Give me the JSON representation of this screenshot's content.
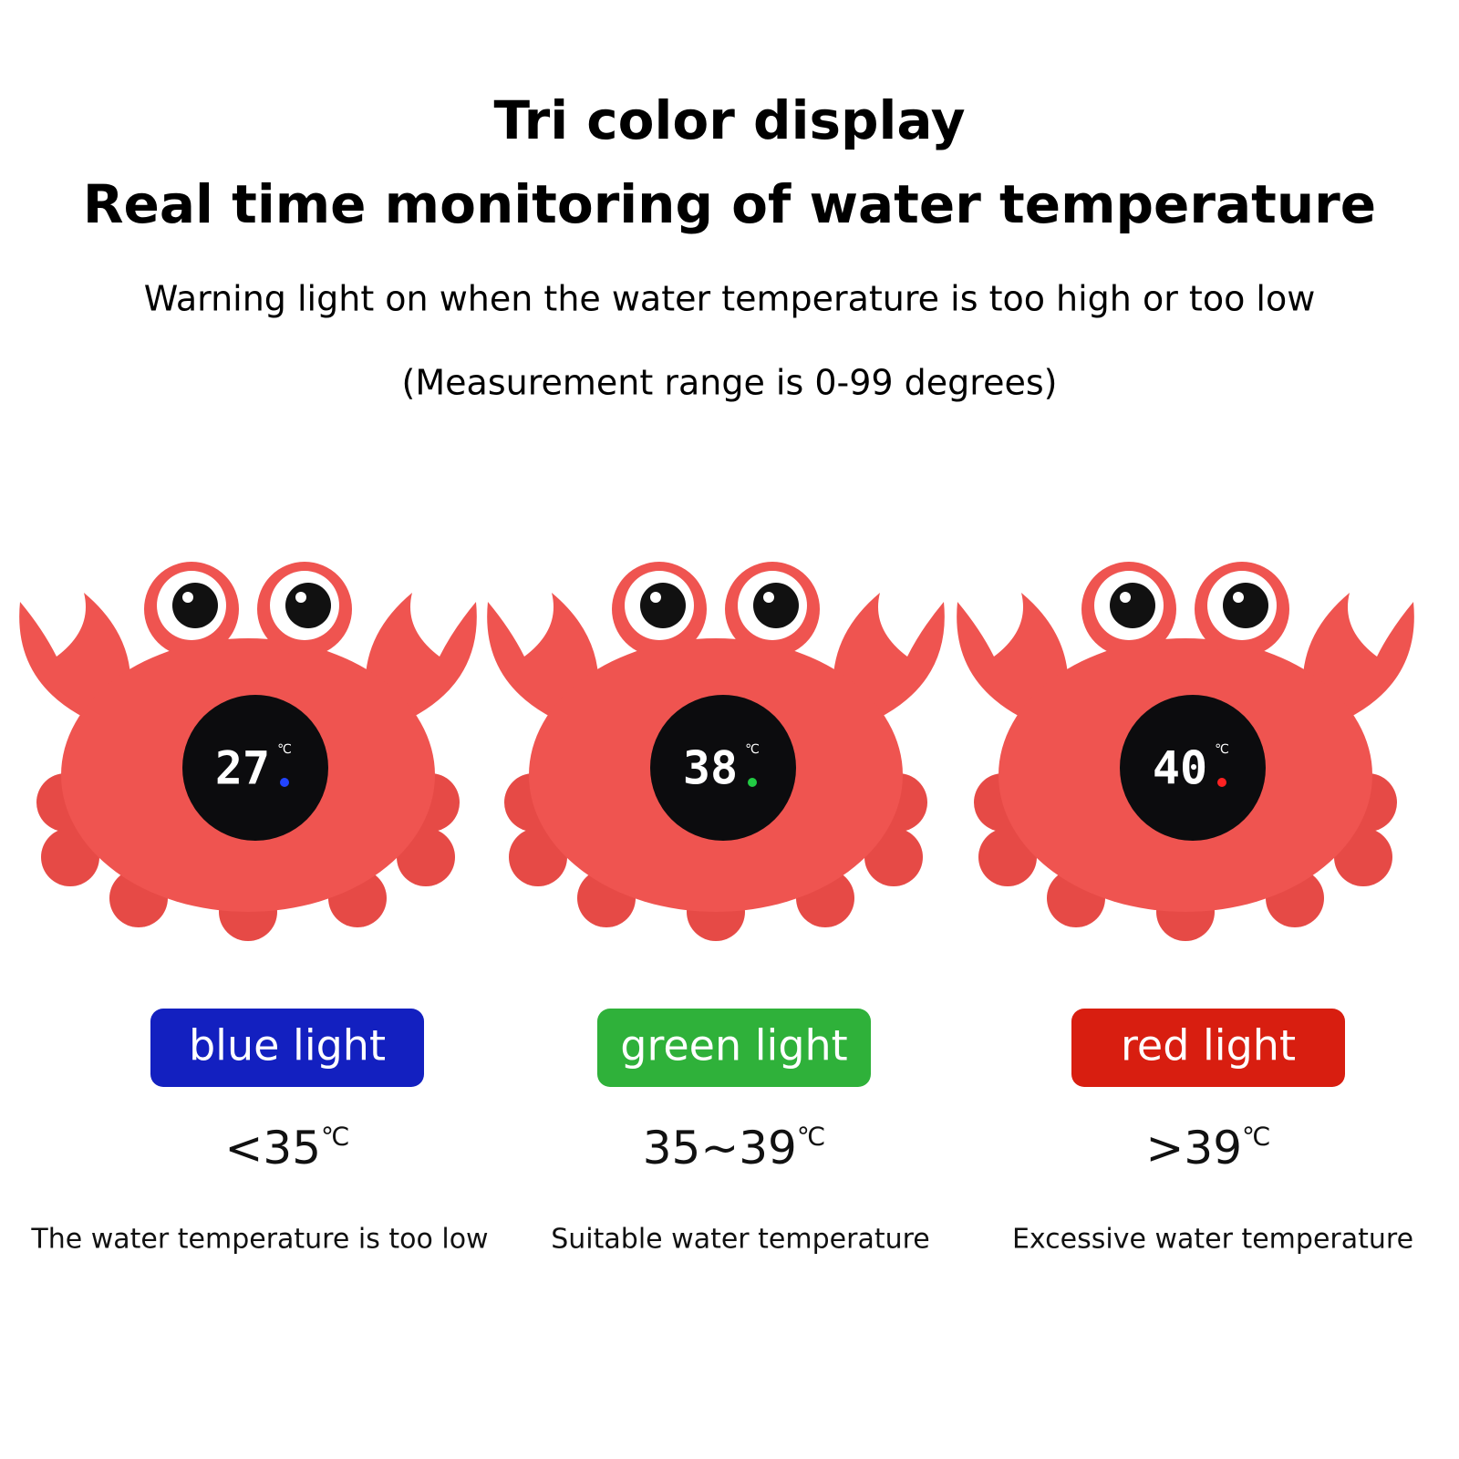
{
  "header": {
    "title": "Tri color display",
    "subtitle": "Real time monitoring of water temperature",
    "note": "Warning light on when the water temperature is too high or too low",
    "range": "(Measurement range is 0-99 degrees)"
  },
  "items": [
    {
      "display": "27",
      "display_unit": "℃",
      "light": "blue light",
      "range": "<35",
      "range_unit": "℃",
      "description": "The water temperature is too low"
    },
    {
      "display": "38",
      "display_unit": "℃",
      "light": "green light",
      "range": "35~39",
      "range_unit": "℃",
      "description": "Suitable water temperature"
    },
    {
      "display": "40",
      "display_unit": "℃",
      "light": "red light",
      "range": ">39",
      "range_unit": "℃",
      "description": "Excessive water temperature"
    }
  ]
}
